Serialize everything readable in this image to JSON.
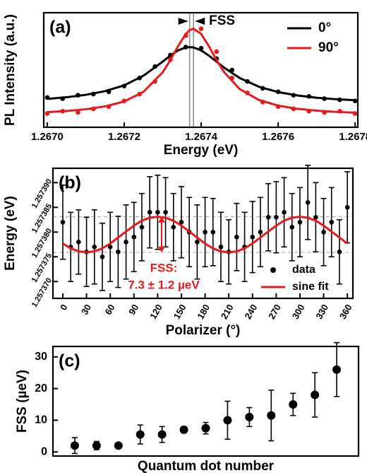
{
  "chart_data": [
    {
      "type": "scatter",
      "panel_label": "(a)",
      "xlabel": "Energy (eV)",
      "ylabel": "PL Intensity (a.u.)",
      "annotation": "FSS",
      "xlim": [
        1.266991,
        1.267807
      ],
      "ylim": [
        0,
        1
      ],
      "xticks": [
        {
          "value": 1.267,
          "label": "1.2670"
        },
        {
          "value": 1.2672,
          "label": "1.2672"
        },
        {
          "value": 1.2674,
          "label": "1.2674"
        },
        {
          "value": 1.2676,
          "label": "1.2676"
        },
        {
          "value": 1.2678,
          "label": "1.2678"
        }
      ],
      "vlines": [
        1.26737,
        1.26738
      ],
      "legend": "upper right",
      "series": [
        {
          "style": "markers",
          "color": "#000000",
          "x": [
            1.267,
            1.26704,
            1.26708,
            1.26712,
            1.26716,
            1.2672,
            1.26724,
            1.26728,
            1.26732,
            1.26736,
            1.2674,
            1.26744,
            1.26748,
            1.26752,
            1.26756,
            1.2676,
            1.26764,
            1.26768,
            1.26772,
            1.26776,
            1.2678
          ],
          "values": [
            0.26,
            0.25,
            0.28,
            0.29,
            0.31,
            0.36,
            0.43,
            0.53,
            0.63,
            0.7,
            0.69,
            0.6,
            0.5,
            0.4,
            0.34,
            0.31,
            0.28,
            0.27,
            0.25,
            0.24,
            0.23
          ]
        },
        {
          "style": "markers",
          "color": "#e8191b",
          "x": [
            1.267,
            1.26704,
            1.26708,
            1.26712,
            1.26716,
            1.2672,
            1.26724,
            1.26728,
            1.26732,
            1.26736,
            1.2674,
            1.26744,
            1.26748,
            1.26752,
            1.26756,
            1.2676,
            1.26764,
            1.26768,
            1.26772,
            1.26776,
            1.2678
          ],
          "values": [
            0.12,
            0.14,
            0.13,
            0.16,
            0.18,
            0.23,
            0.29,
            0.4,
            0.59,
            0.8,
            0.86,
            0.66,
            0.43,
            0.3,
            0.22,
            0.18,
            0.16,
            0.14,
            0.13,
            0.14,
            0.12
          ]
        },
        {
          "name": "0°",
          "style": "line",
          "color": "#000000",
          "x": [
            1.267,
            1.26705,
            1.2671,
            1.26715,
            1.2672,
            1.26725,
            1.2673,
            1.26732,
            1.26734,
            1.26736,
            1.26737,
            1.26738,
            1.2674,
            1.26742,
            1.26744,
            1.26746,
            1.2675,
            1.26755,
            1.2676,
            1.26765,
            1.2677,
            1.26775,
            1.2678
          ],
          "values": [
            0.248,
            0.262,
            0.283,
            0.315,
            0.366,
            0.45,
            0.573,
            0.626,
            0.671,
            0.697,
            0.7,
            0.697,
            0.671,
            0.626,
            0.573,
            0.52,
            0.43,
            0.354,
            0.307,
            0.278,
            0.258,
            0.245,
            0.236
          ]
        },
        {
          "name": "90°",
          "style": "line",
          "color": "#e8191b",
          "x": [
            1.267,
            1.26705,
            1.2671,
            1.26715,
            1.2672,
            1.26725,
            1.2673,
            1.26732,
            1.26734,
            1.26736,
            1.26737,
            1.26738,
            1.2674,
            1.26742,
            1.26744,
            1.26746,
            1.2675,
            1.26755,
            1.2676,
            1.26765,
            1.2677,
            1.26775,
            1.2678
          ],
          "values": [
            0.132,
            0.142,
            0.157,
            0.182,
            0.225,
            0.309,
            0.48,
            0.586,
            0.708,
            0.815,
            0.848,
            0.86,
            0.815,
            0.708,
            0.586,
            0.48,
            0.334,
            0.238,
            0.189,
            0.161,
            0.145,
            0.134,
            0.127
          ]
        }
      ]
    },
    {
      "type": "errorbar",
      "panel_label": "(b)",
      "xlabel": "Polarizer (°)",
      "ylabel": "Energy (eV)",
      "annotation": [
        "FSS:",
        "7.3 ± 1.2 µeV"
      ],
      "xlim": [
        -12.5,
        367
      ],
      "ylim": [
        1.2573666,
        1.2573929
      ],
      "xticks": [
        0,
        30,
        60,
        90,
        120,
        150,
        180,
        210,
        240,
        270,
        300,
        330,
        360
      ],
      "yticks": [
        {
          "value": 1.25737,
          "label": "1.257370"
        },
        {
          "value": 1.257375,
          "label": "1.257375"
        },
        {
          "value": 1.25738,
          "label": "1.257380"
        },
        {
          "value": 1.257385,
          "label": "1.257385"
        },
        {
          "value": 1.25739,
          "label": "1.257390"
        }
      ],
      "hlines": [
        1.2573831,
        1.2573759
      ],
      "legend": "lower right",
      "series": [
        {
          "name": "data",
          "style": "markers",
          "color": "#000000",
          "x": [
            0,
            10,
            20,
            30,
            40,
            50,
            60,
            70,
            80,
            90,
            100,
            110,
            120,
            130,
            140,
            150,
            160,
            170,
            180,
            190,
            200,
            210,
            220,
            230,
            240,
            250,
            260,
            270,
            280,
            290,
            300,
            310,
            320,
            330,
            340,
            350,
            360
          ],
          "values": [
            1.257382,
            1.257377,
            1.257378,
            1.257376,
            1.257377,
            1.257375,
            1.257377,
            1.257376,
            1.257378,
            1.257379,
            1.257381,
            1.257384,
            1.257384,
            1.257384,
            1.257381,
            1.257382,
            1.25738,
            1.257378,
            1.25738,
            1.25738,
            1.257377,
            1.257376,
            1.257379,
            1.257377,
            1.257379,
            1.25738,
            1.257383,
            1.257383,
            1.257384,
            1.257381,
            1.257382,
            1.257386,
            1.257383,
            1.25738,
            1.257382,
            1.257376,
            1.257385
          ],
          "errors": [
            7.5e-06,
            7e-06,
            6.5e-06,
            7e-06,
            7.5e-06,
            6.8e-06,
            7e-06,
            7.2e-06,
            7.5e-06,
            7e-06,
            6.8e-06,
            7.2e-06,
            7.5e-06,
            7e-06,
            6.8e-06,
            7.2e-06,
            7e-06,
            7.5e-06,
            7e-06,
            6.8e-06,
            7e-06,
            6.5e-06,
            6.8e-06,
            7e-06,
            7.2e-06,
            7e-06,
            6.8e-06,
            7.2e-06,
            7e-06,
            6.8e-06,
            7e-06,
            7.5e-06,
            7e-06,
            6.8e-06,
            7e-06,
            6.5e-06,
            7.2e-06
          ]
        },
        {
          "name": "sine fit",
          "style": "line",
          "color": "#e8191b",
          "x": [
            0,
            10,
            20,
            30,
            40,
            50,
            60,
            70,
            80,
            90,
            100,
            110,
            120,
            130,
            140,
            150,
            160,
            170,
            180,
            190,
            200,
            210,
            220,
            230,
            240,
            250,
            260,
            270,
            280,
            290,
            300,
            310,
            320,
            330,
            340,
            350,
            360
          ],
          "values": [
            1.2573777,
            1.2573767,
            1.2573761,
            1.2573759,
            1.2573761,
            1.2573767,
            1.2573777,
            1.2573789,
            1.2573801,
            1.2573813,
            1.2573823,
            1.2573829,
            1.2573831,
            1.2573829,
            1.2573823,
            1.2573813,
            1.2573801,
            1.2573789,
            1.2573777,
            1.2573767,
            1.2573761,
            1.2573759,
            1.2573761,
            1.2573767,
            1.2573777,
            1.2573789,
            1.2573801,
            1.2573813,
            1.2573823,
            1.2573829,
            1.2573831,
            1.2573829,
            1.2573823,
            1.2573813,
            1.2573801,
            1.2573789,
            1.2573777
          ]
        }
      ]
    },
    {
      "type": "errorbar",
      "panel_label": "(c)",
      "xlabel": "Quantum dot number",
      "ylabel": "FSS (µeV)",
      "xlim": [
        0,
        14
      ],
      "ylim": [
        -1.3,
        33.3
      ],
      "yticks": [
        0,
        10,
        20,
        30
      ],
      "series": [
        {
          "style": "markers",
          "color": "#000000",
          "x": [
            1,
            2,
            3,
            4,
            5,
            6,
            7,
            8,
            9,
            10,
            11,
            12,
            13
          ],
          "values": [
            2,
            2,
            2,
            5.5,
            5.5,
            7,
            7.5,
            10,
            11,
            11.5,
            15,
            18,
            26
          ],
          "errors": [
            2.5,
            1.3,
            0.7,
            3,
            2.5,
            1,
            1.8,
            6,
            3,
            8,
            3.5,
            7,
            8.5
          ]
        }
      ]
    }
  ]
}
